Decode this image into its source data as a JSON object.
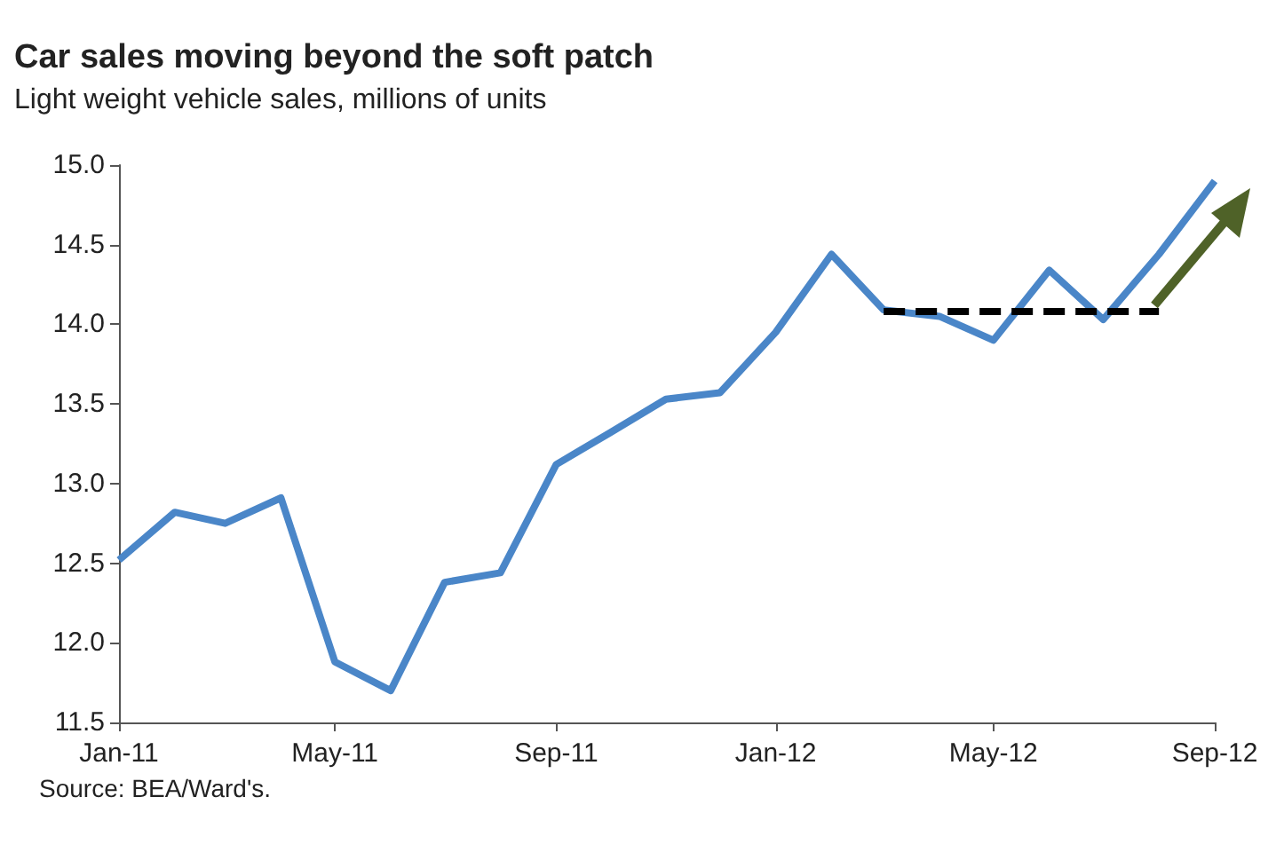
{
  "chart_data": {
    "type": "line",
    "title": "Car sales moving beyond the soft patch",
    "subtitle": "Light weight vehicle sales, millions of units",
    "x": [
      "2011-01",
      "2011-02",
      "2011-03",
      "2011-04",
      "2011-05",
      "2011-06",
      "2011-07",
      "2011-08",
      "2011-09",
      "2011-10",
      "2011-11",
      "2011-12",
      "2012-01",
      "2012-02",
      "2012-03",
      "2012-04",
      "2012-05",
      "2012-06",
      "2012-07",
      "2012-08",
      "2012-09"
    ],
    "series": [
      {
        "color": "#4a86c8",
        "values": [
          12.52,
          12.82,
          12.75,
          12.91,
          11.88,
          11.7,
          12.38,
          12.44,
          13.12,
          13.32,
          13.53,
          13.57,
          13.95,
          14.44,
          14.09,
          14.05,
          13.9,
          14.34,
          14.03,
          14.44,
          14.9
        ]
      },
      {
        "color": "#000000",
        "line_style": "dashed",
        "x": [
          "2012-03",
          "2012-08"
        ],
        "values": [
          14.08,
          14.08
        ]
      }
    ],
    "xlim": [
      "2011-01",
      "2012-09"
    ],
    "xticks": [
      {
        "value": "2011-01",
        "label": "Jan-11"
      },
      {
        "value": "2011-05",
        "label": "May-11"
      },
      {
        "value": "2011-09",
        "label": "Sep-11"
      },
      {
        "value": "2012-01",
        "label": "Jan-12"
      },
      {
        "value": "2012-05",
        "label": "May-12"
      },
      {
        "value": "2012-09",
        "label": "Sep-12"
      }
    ],
    "ylim": [
      11.5,
      15.0
    ],
    "yticks": [
      {
        "value": 11.5,
        "label": "11.5"
      },
      {
        "value": 12,
        "label": "12.0"
      },
      {
        "value": 12.5,
        "label": "12.5"
      },
      {
        "value": 13,
        "label": "13.0"
      },
      {
        "value": 13.5,
        "label": "13.5"
      },
      {
        "value": 14,
        "label": "14.0"
      },
      {
        "value": 14.5,
        "label": "14.5"
      },
      {
        "value": 15,
        "label": "15.0"
      }
    ],
    "grid": false,
    "marker": "none",
    "line_style": "solid",
    "annotations": [
      "Source: BEA/Ward's."
    ]
  }
}
